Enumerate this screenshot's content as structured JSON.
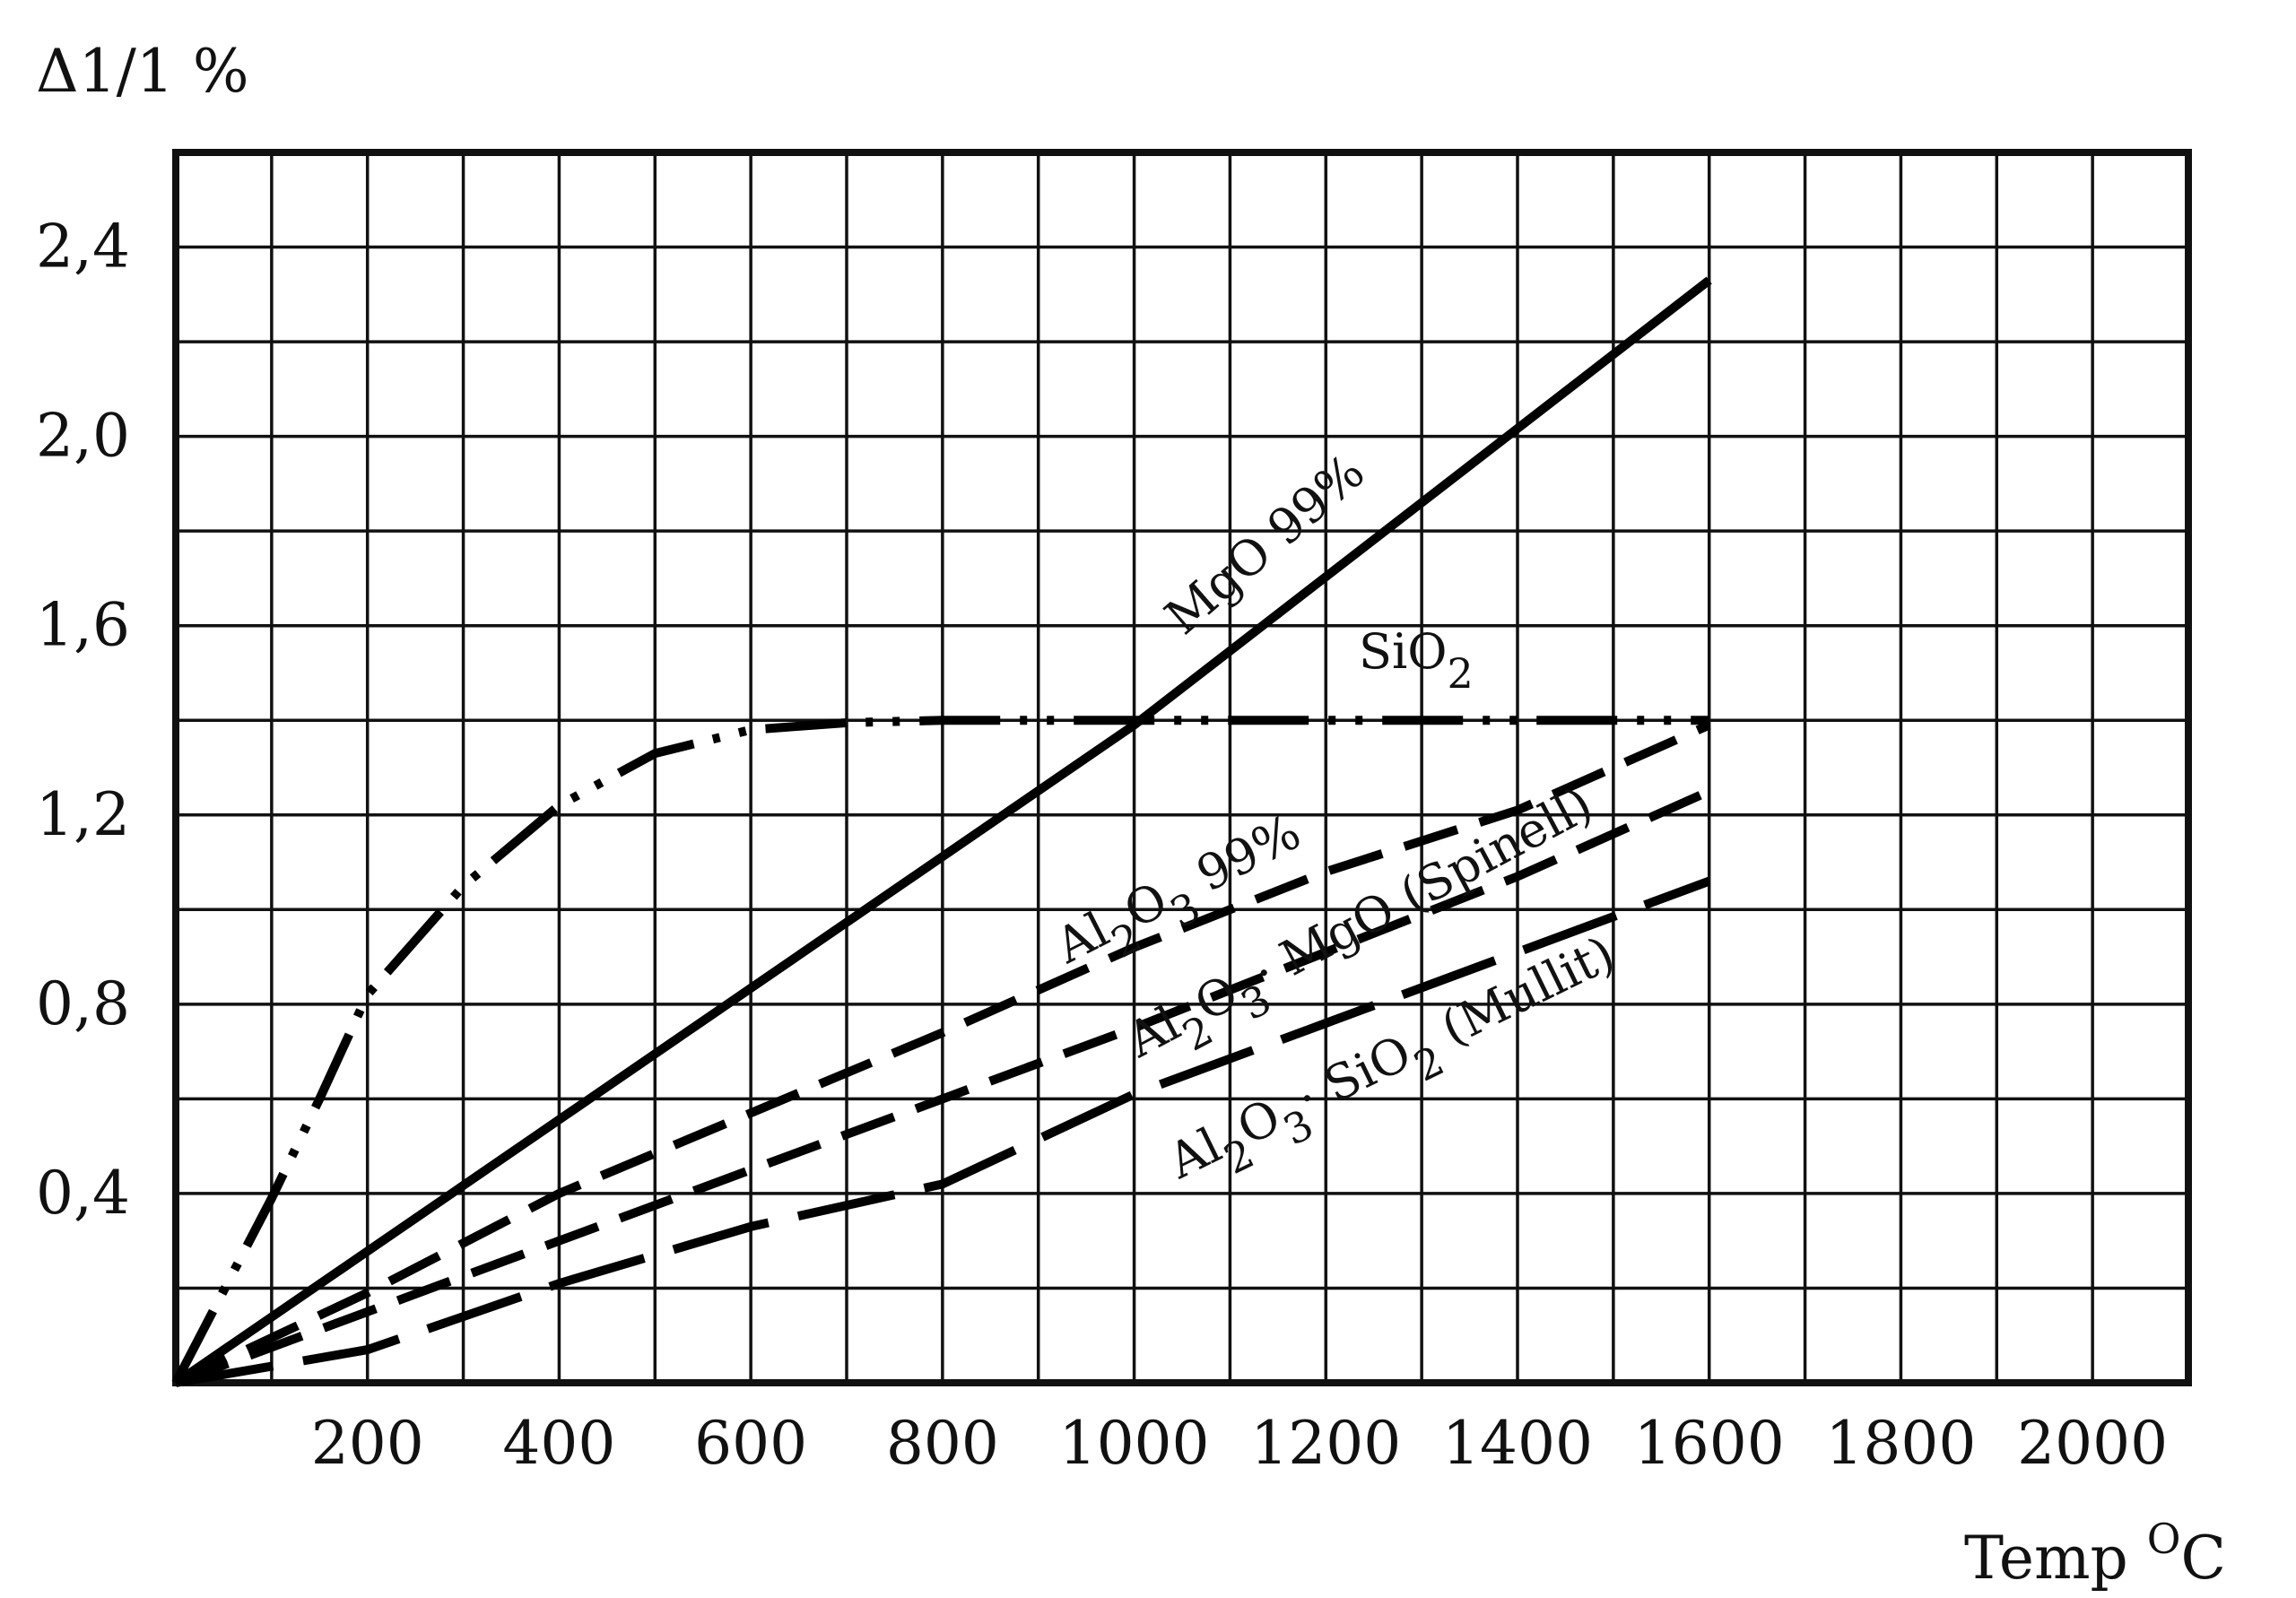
{
  "chart_data": {
    "type": "line",
    "ylabel": "Δ1/1 %",
    "xlabel": "Temp ",
    "xlabel_unit": "O",
    "xlabel_unit_base": "C",
    "xlim": [
      0,
      2100
    ],
    "ylim": [
      0,
      2.6
    ],
    "x_ticks": [
      200,
      400,
      600,
      800,
      1000,
      1200,
      1400,
      1600,
      1800,
      2000
    ],
    "x_tick_labels": [
      "200",
      "400",
      "600",
      "800",
      "1000",
      "1200",
      "1400",
      "1600",
      "1800",
      "2000"
    ],
    "y_ticks": [
      0.4,
      0.8,
      1.2,
      1.6,
      2.0,
      2.4
    ],
    "y_tick_labels": [
      "0,4",
      "0,8",
      "1,2",
      "1,6",
      "2,0",
      "2,4"
    ],
    "grid": true,
    "grid_x_step": 100,
    "grid_y_step": 0.2,
    "series": [
      {
        "name": "MgO 99%",
        "style": "solid",
        "x": [
          0,
          1000,
          1600
        ],
        "y": [
          0,
          1.39,
          2.33
        ]
      },
      {
        "name": "SiO2",
        "style": "dash-dot-dot",
        "x": [
          0,
          100,
          150,
          200,
          300,
          400,
          500,
          600,
          700,
          800,
          1000,
          1200,
          1400,
          1600
        ],
        "y": [
          0,
          0.39,
          0.6,
          0.82,
          1.05,
          1.22,
          1.33,
          1.38,
          1.395,
          1.4,
          1.4,
          1.4,
          1.4,
          1.4
        ]
      },
      {
        "name": "Al2O3 99%",
        "style": "dashed",
        "x": [
          0,
          200,
          400,
          600,
          800,
          1000,
          1200,
          1400,
          1600
        ],
        "y": [
          0,
          0.19,
          0.4,
          0.57,
          0.74,
          0.92,
          1.08,
          1.21,
          1.39
        ]
      },
      {
        "name": "Al2O3·MgO (Spinell)",
        "style": "dashed",
        "x": [
          0,
          200,
          400,
          600,
          800,
          1000,
          1200,
          1400,
          1600
        ],
        "y": [
          0,
          0.15,
          0.3,
          0.45,
          0.6,
          0.75,
          0.91,
          1.07,
          1.25
        ]
      },
      {
        "name": "Al2O3·SiO2 (Mullit)",
        "style": "long-dash",
        "x": [
          0,
          200,
          400,
          600,
          800,
          1000,
          1200,
          1400,
          1600
        ],
        "y": [
          0,
          0.07,
          0.21,
          0.33,
          0.42,
          0.61,
          0.76,
          0.91,
          1.06
        ]
      }
    ],
    "annotations": [
      {
        "text": "MgO 99%",
        "series": "MgO 99%"
      },
      {
        "text": "SiO",
        "sub": "2",
        "series": "SiO2"
      },
      {
        "text": "Al",
        "sub": "2",
        "text2": "O",
        "sub2": "3",
        "text3": " 99%",
        "series": "Al2O3 99%"
      },
      {
        "text": "Al",
        "sub": "2",
        "text2": "O",
        "sub2": "3",
        "text3": "· MgO (Spinell)",
        "series": "Al2O3·MgO (Spinell)"
      },
      {
        "text": "Al",
        "sub": "2",
        "text2": "O",
        "sub2": "3",
        "text3": "· SiO",
        "sub3": "2",
        "text4": " (Mullit)",
        "series": "Al2O3·SiO2 (Mullit)"
      }
    ]
  }
}
